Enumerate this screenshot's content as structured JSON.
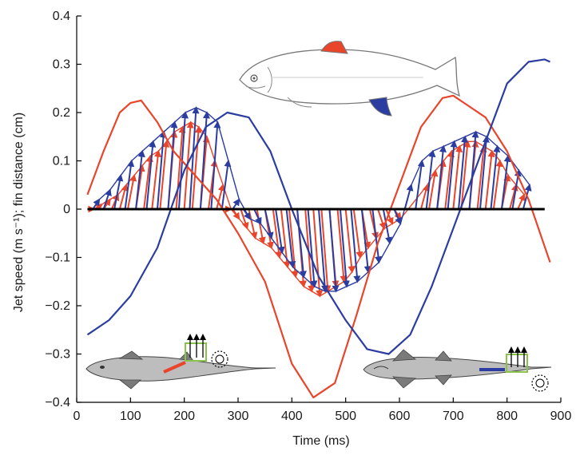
{
  "chart_data": {
    "type": "line",
    "title": "",
    "xlabel": "Time (ms)",
    "ylabel": "Jet speed (m s⁻¹); fin distance (cm)",
    "xlim": [
      0,
      900
    ],
    "ylim": [
      -0.4,
      0.4
    ],
    "x_ticks": [
      0,
      100,
      200,
      300,
      400,
      500,
      600,
      700,
      800,
      900
    ],
    "y_ticks": [
      -0.4,
      -0.3,
      -0.2,
      -0.1,
      0,
      0.1,
      0.2,
      0.3,
      0.4
    ],
    "x_tick_labels": [
      "0",
      "100",
      "200",
      "300",
      "400",
      "500",
      "600",
      "700",
      "800",
      "900"
    ],
    "y_tick_labels": [
      "−0.4",
      "−0.3",
      "−0.2",
      "−0.1",
      "0",
      "0.1",
      "0.2",
      "0.3",
      "0.4"
    ],
    "grid": false,
    "legend": "none",
    "colors": {
      "dorsal": "#e8452b",
      "anal": "#2b3da0",
      "zero_line": "#000000"
    },
    "series": [
      {
        "kind": "line",
        "color": "#e8452b",
        "x": [
          20,
          50,
          80,
          100,
          120,
          150,
          180,
          220,
          260,
          300,
          350,
          400,
          440,
          480,
          520,
          560,
          600,
          640,
          680,
          700,
          720,
          760,
          800,
          840,
          880
        ],
        "y": [
          0.03,
          0.12,
          0.2,
          0.22,
          0.225,
          0.18,
          0.12,
          0.07,
          0.02,
          -0.05,
          -0.15,
          -0.32,
          -0.39,
          -0.36,
          -0.22,
          -0.07,
          0.05,
          0.17,
          0.23,
          0.235,
          0.22,
          0.19,
          0.12,
          0.02,
          -0.11
        ]
      },
      {
        "kind": "line",
        "color": "#2b3da0",
        "x": [
          20,
          60,
          100,
          150,
          200,
          240,
          280,
          320,
          360,
          400,
          450,
          500,
          540,
          580,
          620,
          660,
          700,
          760,
          800,
          840,
          870,
          880
        ],
        "y": [
          -0.26,
          -0.23,
          -0.18,
          -0.08,
          0.08,
          0.17,
          0.2,
          0.19,
          0.12,
          0.0,
          -0.14,
          -0.23,
          -0.29,
          -0.3,
          -0.26,
          -0.16,
          -0.04,
          0.14,
          0.26,
          0.305,
          0.31,
          0.305
        ]
      },
      {
        "kind": "jets",
        "color": "#e8452b",
        "x": [
          20,
          35,
          50,
          65,
          80,
          95,
          110,
          125,
          140,
          155,
          170,
          185,
          200,
          215,
          230,
          245,
          260,
          275,
          290,
          305,
          320,
          335,
          350,
          365,
          380,
          395,
          410,
          425,
          440,
          455,
          470,
          485,
          500,
          515,
          530,
          545,
          560,
          575,
          590,
          640,
          655,
          670,
          685,
          700,
          715,
          730,
          745,
          760,
          775,
          790,
          805,
          820
        ],
        "y": [
          0.0,
          0.01,
          0.02,
          0.03,
          0.05,
          0.07,
          0.09,
          0.11,
          0.12,
          0.14,
          0.16,
          0.17,
          0.18,
          0.17,
          0.15,
          0.1,
          0.05,
          0.0,
          -0.02,
          -0.04,
          -0.06,
          -0.07,
          -0.08,
          -0.1,
          -0.12,
          -0.14,
          -0.16,
          -0.17,
          -0.18,
          -0.17,
          -0.16,
          -0.15,
          -0.13,
          -0.1,
          -0.08,
          -0.06,
          -0.04,
          -0.03,
          -0.02,
          0.05,
          0.08,
          0.1,
          0.12,
          0.13,
          0.14,
          0.14,
          0.13,
          0.12,
          0.1,
          0.07,
          0.05,
          0.03
        ]
      },
      {
        "kind": "jets",
        "color": "#2b3da0",
        "x": [
          30,
          50,
          70,
          90,
          110,
          130,
          150,
          170,
          190,
          210,
          230,
          250,
          270,
          290,
          310,
          330,
          350,
          370,
          390,
          410,
          430,
          450,
          470,
          490,
          510,
          530,
          550,
          570,
          590,
          610,
          630,
          650,
          670,
          690,
          710,
          730,
          750,
          770,
          790,
          810,
          830
        ],
        "y": [
          0.02,
          0.04,
          0.07,
          0.1,
          0.12,
          0.14,
          0.16,
          0.18,
          0.2,
          0.21,
          0.2,
          0.18,
          0.1,
          0.02,
          -0.02,
          -0.03,
          -0.06,
          -0.09,
          -0.12,
          -0.14,
          -0.16,
          -0.17,
          -0.17,
          -0.16,
          -0.15,
          -0.13,
          -0.11,
          -0.07,
          -0.03,
          0.05,
          0.1,
          0.12,
          0.13,
          0.14,
          0.15,
          0.16,
          0.15,
          0.13,
          0.11,
          0.08,
          0.05
        ]
      }
    ]
  },
  "illustrations": {
    "top_fish": "trout-illustration",
    "bottom_left_fish": "shark-side-view-with-dorsal-jet",
    "bottom_right_fish": "shark-bottom-view-with-anal-jet"
  }
}
